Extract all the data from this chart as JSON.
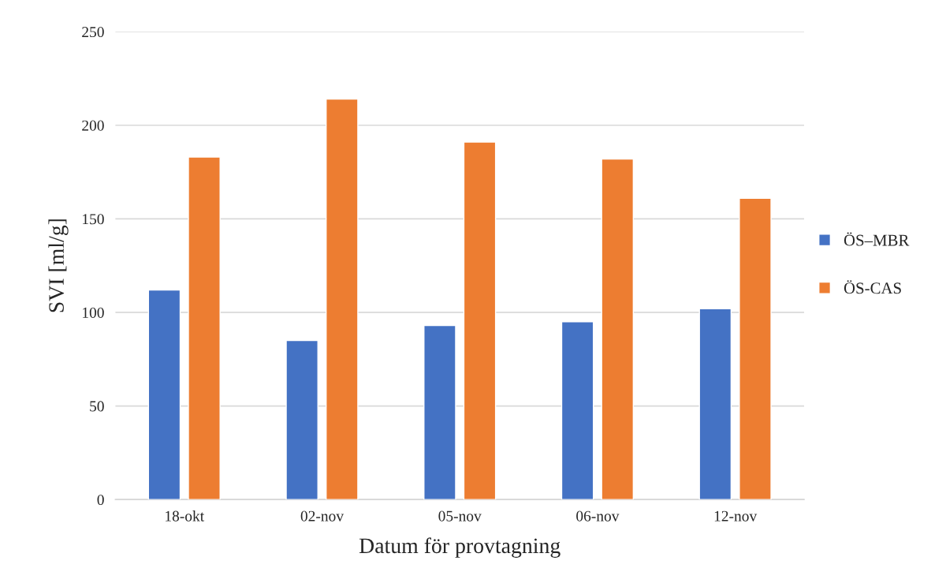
{
  "chart_data": {
    "type": "bar",
    "xlabel": "Datum för provtagning",
    "ylabel": "SVI [ml/g]",
    "categories": [
      "18-okt",
      "02-nov",
      "05-nov",
      "06-nov",
      "12-nov"
    ],
    "series": [
      {
        "name": "ÖS–MBR",
        "color": "#4472c4",
        "values": [
          112,
          85,
          93,
          95,
          102
        ]
      },
      {
        "name": "ÖS-CAS",
        "color": "#ed7d31",
        "values": [
          183,
          214,
          191,
          182,
          161
        ]
      }
    ],
    "ylim": [
      0,
      250
    ],
    "yticks": [
      0,
      50,
      100,
      150,
      200,
      250
    ],
    "grid": "y",
    "legend": "right"
  }
}
